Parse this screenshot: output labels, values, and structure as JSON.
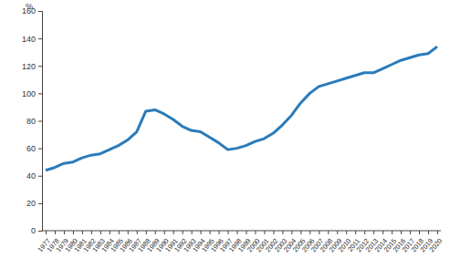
{
  "chart_data": {
    "type": "line",
    "y_label": "%",
    "categories": [
      "1977",
      "1978",
      "1979",
      "1980",
      "1981",
      "1982",
      "1983",
      "1984",
      "1985",
      "1986",
      "1987",
      "1988",
      "1989",
      "1990",
      "1991",
      "1992",
      "1993",
      "1994",
      "1995",
      "1996",
      "1997",
      "1998",
      "1999",
      "2000",
      "2001",
      "2002",
      "2003",
      "2004",
      "2005",
      "2006",
      "2007",
      "2008",
      "2009",
      "2010",
      "2011",
      "2012",
      "2013",
      "2014",
      "2015",
      "2016",
      "2017",
      "2018",
      "2019",
      "2020"
    ],
    "values": [
      44,
      46,
      49,
      50,
      53,
      55,
      56,
      59,
      62,
      66,
      72,
      87,
      88,
      85,
      81,
      76,
      73,
      72,
      68,
      64,
      59,
      60,
      62,
      65,
      67,
      71,
      77,
      84,
      93,
      100,
      105,
      107,
      109,
      111,
      113,
      115,
      115,
      118,
      121,
      124,
      126,
      128,
      129,
      134
    ],
    "color": "#2b7bb9",
    "ylim": [
      0,
      160
    ],
    "yticks": [
      0,
      20,
      40,
      60,
      80,
      100,
      120,
      140,
      160
    ],
    "grid": false
  }
}
